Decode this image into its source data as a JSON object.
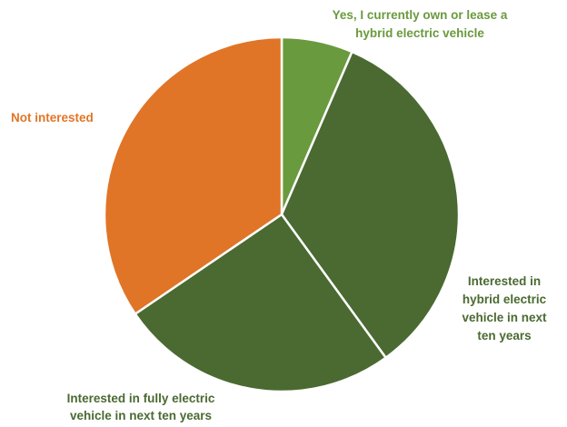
{
  "chart_data": {
    "type": "pie",
    "title": "",
    "legend": "none",
    "slices": [
      {
        "label_lines": [
          "Yes, I currently own or lease a",
          "hybrid electric vehicle"
        ],
        "value": 6.5,
        "color": "#6a9a3e",
        "label_color": "#6a9a3e"
      },
      {
        "label_lines": [
          "Interested in",
          "hybrid electric",
          "vehicle in next",
          "ten years"
        ],
        "value": 33.5,
        "color": "#4a6a31",
        "label_color": "#4a6a31"
      },
      {
        "label_lines": [
          "Interested in fully electric",
          "vehicle in next ten years"
        ],
        "value": 25.5,
        "color": "#4a6a31",
        "label_color": "#4a6a31"
      },
      {
        "label_lines": [
          "Not interested"
        ],
        "value": 34.5,
        "color": "#e07527",
        "label_color": "#e07527"
      }
    ]
  }
}
